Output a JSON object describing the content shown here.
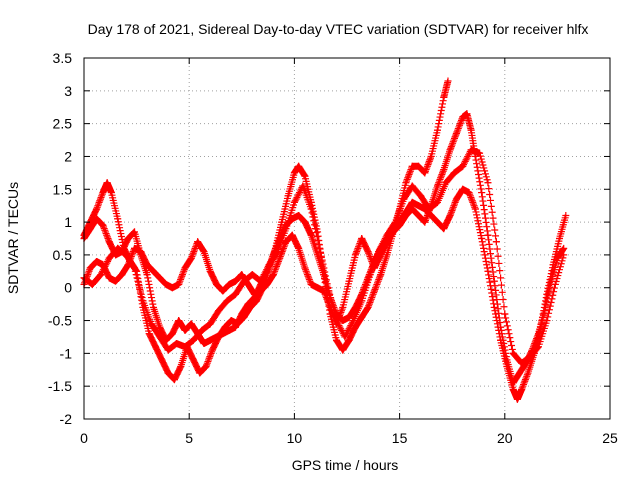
{
  "chart_data": {
    "type": "scatter",
    "title": "Day 178 of 2021, Sidereal Day-to-day VTEC variation (SDTVAR) for receiver hlfx",
    "xlabel": "GPS time / hours",
    "ylabel": "SDTVAR / TECUs",
    "xlim": [
      0,
      25
    ],
    "ylim": [
      -2,
      3.5
    ],
    "x_ticks": [
      0,
      5,
      10,
      15,
      20,
      25
    ],
    "x_tick_labels": [
      "0",
      "5",
      "10",
      "15",
      "20",
      "25"
    ],
    "y_ticks": [
      -2,
      -1.5,
      -1,
      -0.5,
      0,
      0.5,
      1,
      1.5,
      2,
      2.5,
      3,
      3.5
    ],
    "y_tick_labels": [
      "-2",
      "-1.5",
      "-1",
      "-0.5",
      "0",
      "0.5",
      "1",
      "1.5",
      "2",
      "2.5",
      "3",
      "3.5"
    ],
    "grid": true,
    "marker": "+",
    "marker_color": "#ff0000",
    "series": [
      {
        "points": [
          [
            0.0,
            0.8
          ],
          [
            0.3,
            1.0
          ],
          [
            0.6,
            1.2
          ],
          [
            0.9,
            1.45
          ],
          [
            1.1,
            1.6
          ],
          [
            1.3,
            1.45
          ],
          [
            1.6,
            1.05
          ],
          [
            1.9,
            0.6
          ],
          [
            2.2,
            0.4
          ],
          [
            2.5,
            0.25
          ],
          [
            2.8,
            -0.3
          ],
          [
            3.1,
            -0.7
          ],
          [
            3.4,
            -0.9
          ],
          [
            3.7,
            -1.1
          ],
          [
            4.0,
            -1.3
          ],
          [
            4.3,
            -1.4
          ],
          [
            4.6,
            -1.2
          ],
          [
            4.9,
            -0.9
          ],
          [
            5.2,
            -1.1
          ],
          [
            5.5,
            -1.3
          ],
          [
            5.8,
            -1.2
          ],
          [
            6.1,
            -0.95
          ],
          [
            6.4,
            -0.75
          ],
          [
            6.7,
            -0.6
          ],
          [
            7.0,
            -0.5
          ],
          [
            7.3,
            -0.55
          ],
          [
            7.6,
            -0.45
          ],
          [
            7.9,
            -0.3
          ],
          [
            8.2,
            -0.2
          ],
          [
            8.5,
            0.0
          ],
          [
            8.8,
            0.3
          ],
          [
            9.1,
            0.6
          ],
          [
            9.4,
            1.0
          ],
          [
            9.7,
            1.4
          ],
          [
            10.0,
            1.75
          ],
          [
            10.2,
            1.85
          ],
          [
            10.5,
            1.7
          ],
          [
            10.8,
            1.3
          ],
          [
            11.1,
            0.85
          ],
          [
            11.4,
            0.2
          ],
          [
            11.7,
            -0.4
          ],
          [
            12.0,
            -0.8
          ],
          [
            12.3,
            -0.95
          ],
          [
            12.6,
            -0.8
          ],
          [
            12.9,
            -0.6
          ],
          [
            13.2,
            -0.45
          ],
          [
            13.5,
            -0.3
          ],
          [
            13.8,
            -0.05
          ],
          [
            14.1,
            0.2
          ],
          [
            14.4,
            0.5
          ],
          [
            14.7,
            0.85
          ],
          [
            15.0,
            1.2
          ],
          [
            15.3,
            1.6
          ],
          [
            15.6,
            1.85
          ],
          [
            15.9,
            1.85
          ],
          [
            16.2,
            1.75
          ],
          [
            16.5,
            2.0
          ],
          [
            16.8,
            2.4
          ],
          [
            17.1,
            2.9
          ],
          [
            17.3,
            3.15
          ]
        ]
      },
      {
        "points": [
          [
            0.0,
            0.75
          ],
          [
            0.3,
            0.9
          ],
          [
            0.6,
            1.05
          ],
          [
            0.9,
            0.95
          ],
          [
            1.2,
            0.7
          ],
          [
            1.5,
            0.5
          ],
          [
            1.8,
            0.55
          ],
          [
            2.1,
            0.75
          ],
          [
            2.4,
            0.85
          ],
          [
            2.7,
            0.5
          ],
          [
            3.0,
            0.2
          ],
          [
            3.3,
            -0.3
          ],
          [
            3.6,
            -0.6
          ],
          [
            3.9,
            -0.8
          ],
          [
            4.2,
            -0.7
          ],
          [
            4.5,
            -0.5
          ],
          [
            4.8,
            -0.65
          ],
          [
            5.1,
            -0.55
          ],
          [
            5.4,
            -0.7
          ],
          [
            5.7,
            -0.85
          ],
          [
            6.0,
            -0.8
          ],
          [
            6.3,
            -0.75
          ],
          [
            6.6,
            -0.7
          ],
          [
            6.9,
            -0.65
          ],
          [
            7.2,
            -0.6
          ],
          [
            7.5,
            -0.4
          ],
          [
            7.8,
            -0.25
          ],
          [
            8.1,
            -0.15
          ],
          [
            8.4,
            0.05
          ],
          [
            8.7,
            0.25
          ],
          [
            9.0,
            0.5
          ],
          [
            9.3,
            0.75
          ],
          [
            9.6,
            0.95
          ],
          [
            9.9,
            1.05
          ],
          [
            10.2,
            1.1
          ],
          [
            10.5,
            1.0
          ],
          [
            10.8,
            0.8
          ],
          [
            11.1,
            0.5
          ],
          [
            11.4,
            0.2
          ],
          [
            11.7,
            -0.15
          ],
          [
            12.0,
            -0.4
          ],
          [
            12.3,
            -0.5
          ],
          [
            12.6,
            -0.45
          ],
          [
            12.9,
            -0.3
          ],
          [
            13.2,
            -0.1
          ],
          [
            13.5,
            0.15
          ],
          [
            13.8,
            0.4
          ],
          [
            14.1,
            0.6
          ],
          [
            14.4,
            0.75
          ],
          [
            14.7,
            0.85
          ],
          [
            15.0,
            0.95
          ],
          [
            15.3,
            1.1
          ],
          [
            15.6,
            1.2
          ],
          [
            15.9,
            1.1
          ],
          [
            16.2,
            1.0
          ],
          [
            16.5,
            1.25
          ],
          [
            16.8,
            1.55
          ],
          [
            17.1,
            1.8
          ],
          [
            17.4,
            2.1
          ],
          [
            17.7,
            2.35
          ],
          [
            18.0,
            2.6
          ],
          [
            18.2,
            2.65
          ],
          [
            18.4,
            2.4
          ],
          [
            18.6,
            2.0
          ],
          [
            18.9,
            1.45
          ],
          [
            19.2,
            0.8
          ],
          [
            19.5,
            0.1
          ],
          [
            19.8,
            -0.6
          ],
          [
            20.1,
            -1.1
          ],
          [
            20.4,
            -1.45
          ],
          [
            20.7,
            -1.3
          ],
          [
            21.0,
            -1.15
          ],
          [
            21.3,
            -0.95
          ],
          [
            21.6,
            -0.7
          ],
          [
            21.9,
            -0.35
          ],
          [
            22.2,
            0.1
          ],
          [
            22.5,
            0.45
          ],
          [
            22.8,
            0.6
          ]
        ]
      },
      {
        "points": [
          [
            0.0,
            0.05
          ],
          [
            0.3,
            0.3
          ],
          [
            0.6,
            0.4
          ],
          [
            0.9,
            0.35
          ],
          [
            1.2,
            0.15
          ],
          [
            1.5,
            0.1
          ],
          [
            1.8,
            0.2
          ],
          [
            2.1,
            0.35
          ],
          [
            2.4,
            0.6
          ],
          [
            2.7,
            0.55
          ],
          [
            3.0,
            0.35
          ],
          [
            3.3,
            0.25
          ],
          [
            3.6,
            0.15
          ],
          [
            3.9,
            0.05
          ],
          [
            4.2,
            0.0
          ],
          [
            4.5,
            0.05
          ],
          [
            4.8,
            0.3
          ],
          [
            5.1,
            0.45
          ],
          [
            5.4,
            0.7
          ],
          [
            5.7,
            0.55
          ],
          [
            6.0,
            0.25
          ],
          [
            6.3,
            0.05
          ],
          [
            6.6,
            -0.05
          ],
          [
            6.9,
            0.05
          ],
          [
            7.2,
            0.1
          ],
          [
            7.5,
            0.2
          ],
          [
            7.8,
            0.05
          ],
          [
            8.1,
            -0.1
          ],
          [
            8.4,
            -0.05
          ],
          [
            8.7,
            0.05
          ],
          [
            9.0,
            0.2
          ],
          [
            9.3,
            0.45
          ],
          [
            9.6,
            0.7
          ],
          [
            9.9,
            0.8
          ],
          [
            10.2,
            0.6
          ],
          [
            10.5,
            0.3
          ],
          [
            10.8,
            0.05
          ],
          [
            11.1,
            0.0
          ],
          [
            11.4,
            -0.05
          ],
          [
            11.7,
            -0.3
          ],
          [
            12.0,
            -0.55
          ],
          [
            12.3,
            -0.3
          ],
          [
            12.6,
            0.1
          ],
          [
            12.9,
            0.5
          ],
          [
            13.2,
            0.75
          ],
          [
            13.5,
            0.55
          ],
          [
            13.8,
            0.3
          ],
          [
            14.1,
            0.5
          ],
          [
            14.4,
            0.7
          ],
          [
            14.7,
            0.85
          ],
          [
            15.0,
            1.0
          ],
          [
            15.3,
            1.15
          ],
          [
            15.6,
            1.3
          ],
          [
            15.9,
            1.25
          ],
          [
            16.2,
            1.2
          ],
          [
            16.5,
            1.1
          ],
          [
            16.8,
            1.0
          ],
          [
            17.1,
            0.9
          ],
          [
            17.4,
            1.1
          ],
          [
            17.7,
            1.35
          ],
          [
            18.0,
            1.5
          ],
          [
            18.3,
            1.45
          ],
          [
            18.6,
            1.2
          ],
          [
            18.9,
            0.75
          ],
          [
            19.2,
            0.25
          ],
          [
            19.5,
            -0.3
          ],
          [
            19.8,
            -0.8
          ],
          [
            20.1,
            -1.2
          ],
          [
            20.4,
            -1.55
          ],
          [
            20.6,
            -1.7
          ],
          [
            20.8,
            -1.55
          ],
          [
            21.1,
            -1.3
          ],
          [
            21.4,
            -1.0
          ],
          [
            21.7,
            -0.6
          ],
          [
            22.0,
            -0.1
          ],
          [
            22.3,
            0.35
          ],
          [
            22.6,
            0.75
          ],
          [
            22.9,
            1.1
          ]
        ]
      },
      {
        "points": [
          [
            0.0,
            0.15
          ],
          [
            0.4,
            0.05
          ],
          [
            0.8,
            0.2
          ],
          [
            1.2,
            0.45
          ],
          [
            1.6,
            0.6
          ],
          [
            2.0,
            0.5
          ],
          [
            2.4,
            0.3
          ],
          [
            2.8,
            -0.2
          ],
          [
            3.2,
            -0.55
          ],
          [
            3.6,
            -0.75
          ],
          [
            4.0,
            -0.95
          ],
          [
            4.4,
            -0.85
          ],
          [
            4.8,
            -0.9
          ],
          [
            5.2,
            -0.8
          ],
          [
            5.6,
            -0.65
          ],
          [
            6.0,
            -0.55
          ],
          [
            6.4,
            -0.35
          ],
          [
            6.8,
            -0.2
          ],
          [
            7.2,
            -0.1
          ],
          [
            7.6,
            0.1
          ],
          [
            8.0,
            0.2
          ],
          [
            8.4,
            0.1
          ],
          [
            8.8,
            0.35
          ],
          [
            9.2,
            0.55
          ],
          [
            9.6,
            0.9
          ],
          [
            10.0,
            1.3
          ],
          [
            10.4,
            1.55
          ],
          [
            10.8,
            1.2
          ],
          [
            11.2,
            0.6
          ],
          [
            11.6,
            0.0
          ],
          [
            12.0,
            -0.5
          ],
          [
            12.4,
            -0.75
          ],
          [
            12.8,
            -0.5
          ],
          [
            13.2,
            -0.2
          ],
          [
            13.6,
            0.2
          ],
          [
            14.0,
            0.55
          ],
          [
            14.4,
            0.8
          ],
          [
            14.8,
            1.0
          ],
          [
            15.2,
            1.35
          ],
          [
            15.6,
            1.55
          ],
          [
            16.0,
            1.4
          ],
          [
            16.4,
            1.2
          ],
          [
            16.8,
            1.3
          ],
          [
            17.2,
            1.6
          ],
          [
            17.6,
            1.75
          ],
          [
            18.0,
            1.85
          ],
          [
            18.4,
            2.1
          ],
          [
            18.8,
            2.05
          ],
          [
            19.2,
            1.6
          ],
          [
            19.6,
            0.7
          ],
          [
            20.0,
            -0.4
          ],
          [
            20.4,
            -1.0
          ],
          [
            20.8,
            -1.15
          ],
          [
            21.2,
            -1.05
          ],
          [
            21.6,
            -0.9
          ],
          [
            22.0,
            -0.5
          ],
          [
            22.4,
            0.05
          ],
          [
            22.8,
            0.5
          ]
        ]
      }
    ]
  }
}
